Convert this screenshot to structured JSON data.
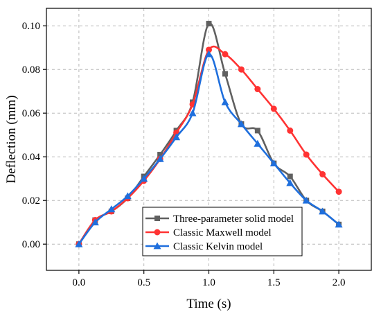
{
  "chart_data": {
    "type": "line",
    "xlabel": "Time (s)",
    "ylabel": "Deflection (mm)",
    "xlim": [
      -0.25,
      2.25
    ],
    "ylim": [
      -0.012,
      0.108
    ],
    "xticks": [
      0.0,
      0.5,
      1.0,
      1.5,
      2.0
    ],
    "xtick_labels": [
      "0.0",
      "0.5",
      "1.0",
      "1.5",
      "2.0"
    ],
    "yticks": [
      0.0,
      0.02,
      0.04,
      0.06,
      0.08,
      0.1
    ],
    "ytick_labels": [
      "0.00",
      "0.02",
      "0.04",
      "0.06",
      "0.08",
      "0.10"
    ],
    "grid": true,
    "legend_position": "bottom-right",
    "series": [
      {
        "name": "Three-parameter solid model",
        "color": "#606060",
        "marker": "square",
        "x": [
          0,
          0.125,
          0.25,
          0.375,
          0.5,
          0.625,
          0.75,
          0.875,
          1.0,
          1.125,
          1.25,
          1.375,
          1.5,
          1.625,
          1.75,
          1.875,
          2.0
        ],
        "y": [
          0.0,
          0.011,
          0.015,
          0.021,
          0.031,
          0.041,
          0.052,
          0.065,
          0.101,
          0.078,
          0.055,
          0.052,
          0.037,
          0.031,
          0.02,
          0.015,
          0.009
        ]
      },
      {
        "name": "Classic Maxwell model",
        "color": "#ff3333",
        "marker": "circle",
        "x": [
          0,
          0.125,
          0.25,
          0.375,
          0.5,
          0.625,
          0.75,
          0.875,
          1.0,
          1.125,
          1.25,
          1.375,
          1.5,
          1.625,
          1.75,
          1.875,
          2.0
        ],
        "y": [
          0.0,
          0.011,
          0.015,
          0.021,
          0.029,
          0.039,
          0.051,
          0.064,
          0.089,
          0.087,
          0.08,
          0.071,
          0.062,
          0.052,
          0.041,
          0.032,
          0.024
        ]
      },
      {
        "name": "Classic Kelvin model",
        "color": "#1f6fdd",
        "marker": "triangle",
        "x": [
          0,
          0.125,
          0.25,
          0.375,
          0.5,
          0.625,
          0.75,
          0.875,
          1.0,
          1.125,
          1.25,
          1.375,
          1.5,
          1.625,
          1.75,
          1.875,
          2.0
        ],
        "y": [
          0.0,
          0.01,
          0.016,
          0.022,
          0.03,
          0.039,
          0.049,
          0.06,
          0.087,
          0.065,
          0.055,
          0.046,
          0.037,
          0.028,
          0.02,
          0.015,
          0.009
        ]
      }
    ]
  }
}
